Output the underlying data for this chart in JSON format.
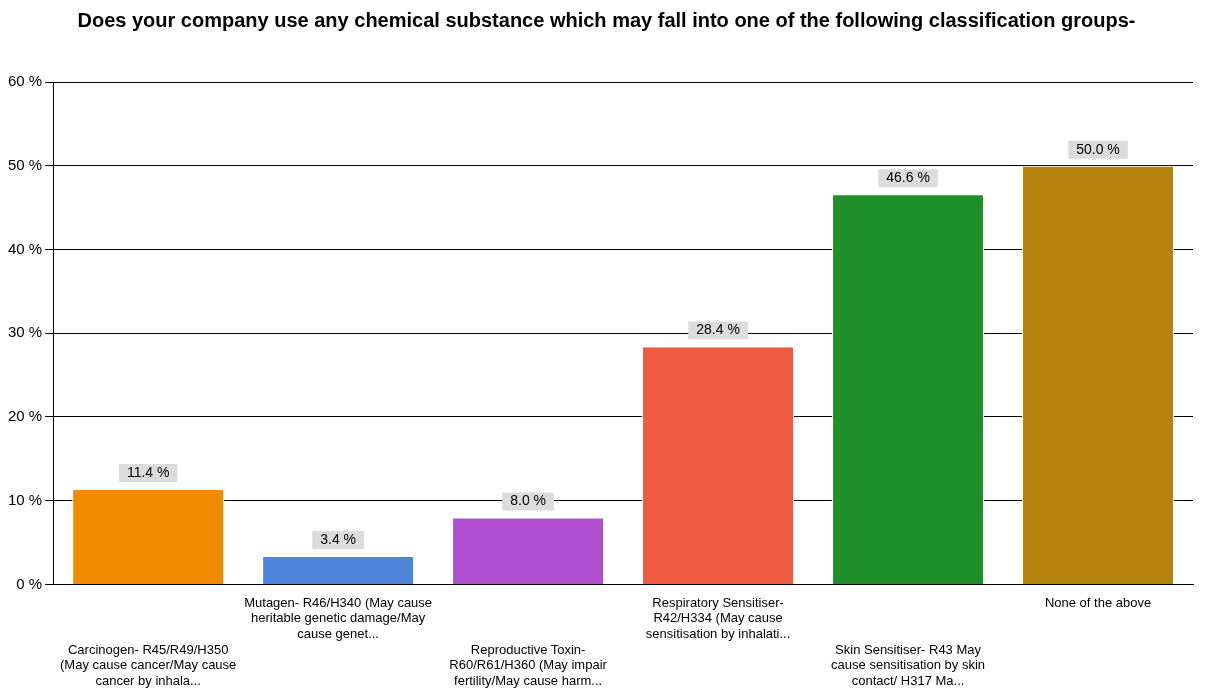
{
  "chart_data": {
    "type": "bar",
    "title": "Does your company use any chemical substance which may fall into one of the following classification groups-",
    "categories": [
      "Carcinogen- R45/R49/H350 (May cause cancer/May cause cancer by inhala...",
      "Mutagen- R46/H340 (May cause heritable genetic damage/May cause genet...",
      "Reproductive Toxin- R60/R61/H360 (May impair fertility/May cause harm...",
      "Respiratory Sensitiser- R42/H334 (May cause sensitisation by inhalati...",
      "Skin Sensitiser- R43 May cause sensitisation by skin contact/ H317 Ma...",
      "None of the above"
    ],
    "values": [
      11.4,
      3.4,
      8.0,
      28.4,
      46.6,
      50.0
    ],
    "value_labels": [
      "11.4 %",
      "3.4 %",
      "8.0 %",
      "28.4 %",
      "46.6 %",
      "50.0 %"
    ],
    "colors": [
      "#f28a00",
      "#4f86dc",
      "#b050d0",
      "#f05a40",
      "#20902a",
      "#b5830e"
    ],
    "ylim": [
      0,
      60
    ],
    "yticks": [
      {
        "value": 0,
        "label": "0 %"
      },
      {
        "value": 10,
        "label": "10 %"
      },
      {
        "value": 20,
        "label": "20 %"
      },
      {
        "value": 30,
        "label": "30 %"
      },
      {
        "value": 40,
        "label": "40 %"
      },
      {
        "value": 50,
        "label": "50 %"
      },
      {
        "value": 60,
        "label": "60 %"
      }
    ],
    "grid": "y",
    "legend": false
  }
}
